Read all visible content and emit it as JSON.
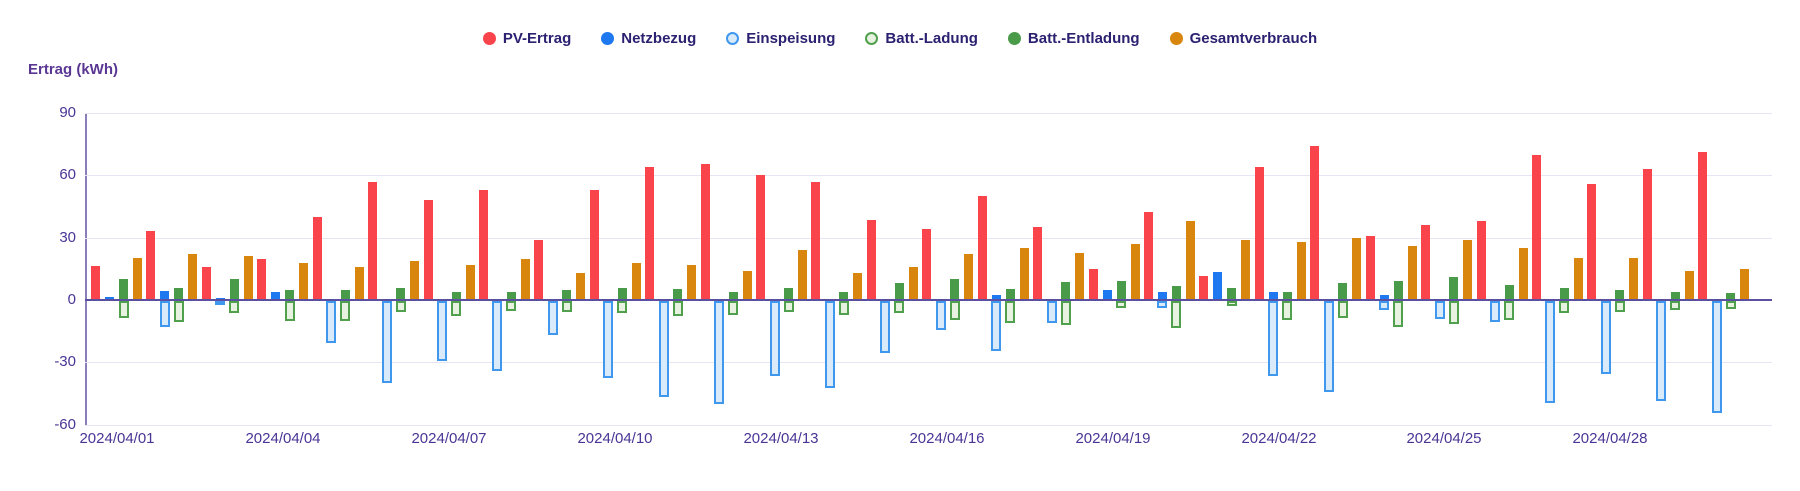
{
  "y_axis": {
    "label": "Ertrag (kWh)",
    "ticks": [
      "90",
      "60",
      "30",
      "0",
      "-30",
      "-60"
    ]
  },
  "x_axis": {
    "tick_labels": [
      "2024/04/01",
      "2024/04/04",
      "2024/04/07",
      "2024/04/10",
      "2024/04/13",
      "2024/04/16",
      "2024/04/19",
      "2024/04/22",
      "2024/04/25",
      "2024/04/28"
    ]
  },
  "colors": {
    "grid": "#E6E5F4",
    "axis": "#5B4FA0",
    "text": "#4A3596",
    "legend_text": "#2B2171"
  },
  "chart_data": {
    "type": "bar",
    "title": "",
    "xlabel": "",
    "ylabel": "Ertrag (kWh)",
    "ylim": [
      -60,
      90
    ],
    "grid": true,
    "legend_position": "top-center",
    "categories": [
      "2024/04/01",
      "2024/04/02",
      "2024/04/03",
      "2024/04/04",
      "2024/04/05",
      "2024/04/06",
      "2024/04/07",
      "2024/04/08",
      "2024/04/09",
      "2024/04/10",
      "2024/04/11",
      "2024/04/12",
      "2024/04/13",
      "2024/04/14",
      "2024/04/15",
      "2024/04/16",
      "2024/04/17",
      "2024/04/18",
      "2024/04/19",
      "2024/04/20",
      "2024/04/21",
      "2024/04/22",
      "2024/04/23",
      "2024/04/24",
      "2024/04/25",
      "2024/04/26",
      "2024/04/27",
      "2024/04/28",
      "2024/04/29",
      "2024/04/30"
    ],
    "x_tick_labels": [
      "2024/04/01",
      "2024/04/04",
      "2024/04/07",
      "2024/04/10",
      "2024/04/13",
      "2024/04/16",
      "2024/04/19",
      "2024/04/22",
      "2024/04/25",
      "2024/04/28"
    ],
    "series": [
      {
        "name": "PV-Ertrag",
        "style": "solid",
        "color": "#F9444B",
        "slot": 0,
        "values": [
          16.5,
          33,
          16,
          19.5,
          40,
          57,
          48,
          53,
          29,
          53,
          64,
          65.5,
          60,
          57,
          38.5,
          34,
          50,
          35,
          15,
          42.5,
          11.5,
          64,
          74,
          31,
          36,
          38,
          70,
          56,
          63,
          71
        ]
      },
      {
        "name": "Netzbezug",
        "style": "solid",
        "color": "#1E78F0",
        "slot": 1,
        "values": [
          1.5,
          4.5,
          0.5,
          3.7,
          0,
          0,
          0,
          0,
          0,
          0,
          0,
          0,
          0,
          0,
          0,
          0,
          2.5,
          0,
          5,
          4,
          13.5,
          4,
          0,
          2.5,
          0,
          0,
          0,
          0,
          0,
          0
        ]
      },
      {
        "name": "Einspeisung",
        "style": "outline",
        "color": "#3F97EE",
        "fill": "#D9EAFA",
        "slot": 1,
        "values": [
          0,
          -12.5,
          -1,
          0,
          -20,
          -39.5,
          -29,
          -33.5,
          -16.5,
          -37,
          -46,
          -49.5,
          -36,
          -42,
          -25,
          -14,
          -24,
          -10.5,
          0,
          -3.5,
          0,
          -36,
          -44,
          -4.5,
          -8.5,
          -10,
          -49,
          -35,
          -48,
          -54
        ]
      },
      {
        "name": "Batt.-Ladung",
        "style": "outline",
        "color": "#50A04D",
        "fill": "#E7F2E1",
        "slot": 2,
        "values": [
          -8,
          -10,
          -6,
          -9.5,
          -9.5,
          -5.5,
          -7,
          -5,
          -5.5,
          -6,
          -7,
          -6.5,
          -5.5,
          -6.5,
          -6,
          -9,
          -10.5,
          -11.5,
          -3.5,
          -13,
          -2.5,
          -9,
          -8,
          -12.5,
          -11,
          -9,
          -6,
          -5.5,
          -4.5,
          -4
        ]
      },
      {
        "name": "Batt.-Entladung",
        "style": "solid",
        "color": "#4A9B49",
        "slot": 2,
        "values": [
          10,
          6,
          10,
          5,
          5,
          6,
          4,
          4,
          5,
          6,
          5.5,
          4,
          6,
          4,
          8,
          10,
          5.5,
          8.5,
          9,
          6.5,
          6,
          4,
          8,
          9,
          11,
          7,
          6,
          5,
          4,
          3.5
        ]
      },
      {
        "name": "Gesamtverbrauch",
        "style": "solid",
        "color": "#D8860D",
        "slot": 3,
        "values": [
          20,
          22,
          21,
          18,
          16,
          19,
          17,
          19.5,
          13,
          18,
          17,
          14,
          24,
          13,
          16,
          22,
          25,
          22.5,
          27,
          38,
          29,
          28,
          30,
          26,
          29,
          25,
          20,
          20,
          14,
          15
        ]
      }
    ]
  }
}
